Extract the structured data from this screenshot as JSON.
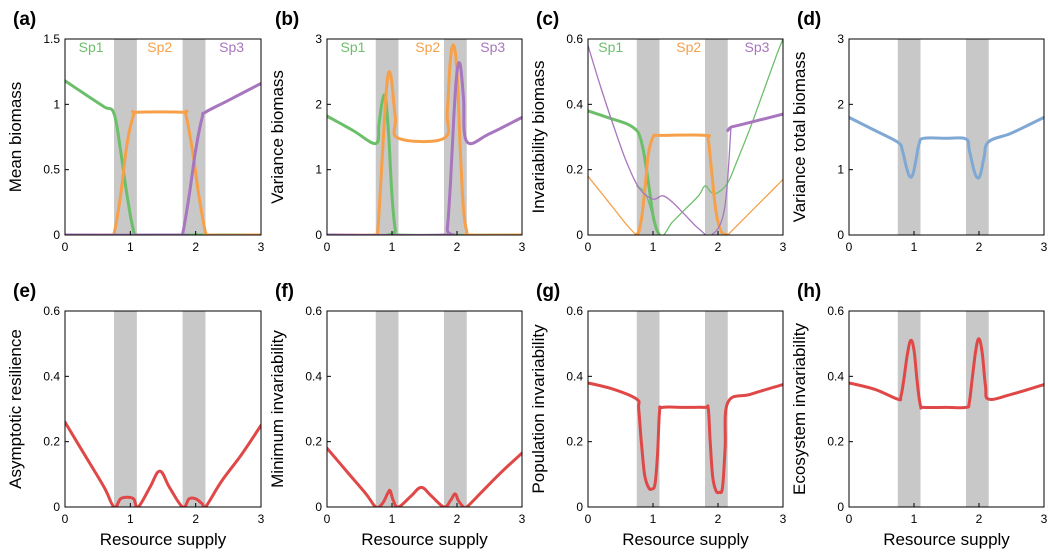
{
  "figure": {
    "xlabel_bottom_row": "Resource supply"
  },
  "colors": {
    "shade": "#c8c8c8",
    "sp1": "#6cbf6a",
    "sp2": "#f7a04a",
    "sp3": "#a776be",
    "total": "#7fa9d4",
    "metric": "#e04848"
  },
  "chart_data": [
    {
      "panel": "(a)",
      "type": "line",
      "ylabel": "Mean biomass",
      "xlim": [
        0,
        3
      ],
      "ylim": [
        0,
        1.5
      ],
      "xticks": [
        "0",
        "1",
        "2",
        "3"
      ],
      "yticks": [
        "0",
        "0.5",
        "1",
        "1.5"
      ],
      "shaded_regions": [
        [
          0.75,
          1.1
        ],
        [
          1.8,
          2.15
        ]
      ],
      "species_labels": [
        {
          "text": "Sp1",
          "x": 0.4,
          "color": "sp1"
        },
        {
          "text": "Sp2",
          "x": 1.45,
          "color": "sp2"
        },
        {
          "text": "Sp3",
          "x": 2.55,
          "color": "sp3"
        }
      ],
      "series": [
        {
          "name": "Sp1",
          "color": "sp1",
          "width": 3,
          "x": [
            0,
            0.3,
            0.6,
            0.75,
            0.85,
            0.95,
            1.05,
            1.1,
            1.5,
            2,
            3
          ],
          "y": [
            1.18,
            1.08,
            0.98,
            0.93,
            0.65,
            0.3,
            0.03,
            0,
            0,
            0,
            0
          ]
        },
        {
          "name": "Sp2",
          "color": "sp2",
          "width": 3,
          "x": [
            0,
            0.7,
            0.75,
            0.85,
            0.95,
            1.05,
            1.1,
            1.8,
            1.85,
            1.95,
            2.05,
            2.15,
            2.2,
            3
          ],
          "y": [
            0,
            0,
            0.01,
            0.3,
            0.7,
            0.92,
            0.94,
            0.94,
            0.92,
            0.65,
            0.3,
            0.02,
            0,
            0
          ]
        },
        {
          "name": "Sp3",
          "color": "sp3",
          "width": 3,
          "x": [
            0,
            1.75,
            1.8,
            1.9,
            2.0,
            2.1,
            2.15,
            2.5,
            3
          ],
          "y": [
            0,
            0,
            0.01,
            0.3,
            0.65,
            0.9,
            0.94,
            1.03,
            1.16
          ]
        }
      ]
    },
    {
      "panel": "(b)",
      "type": "line",
      "ylabel": "Variance biomass",
      "xlim": [
        0,
        3
      ],
      "ylim": [
        0,
        3
      ],
      "xticks": [
        "0",
        "1",
        "2",
        "3"
      ],
      "yticks": [
        "0",
        "1",
        "2",
        "3"
      ],
      "shaded_regions": [
        [
          0.75,
          1.1
        ],
        [
          1.8,
          2.15
        ]
      ],
      "species_labels": [
        {
          "text": "Sp1",
          "x": 0.4,
          "color": "sp1"
        },
        {
          "text": "Sp2",
          "x": 1.55,
          "color": "sp2"
        },
        {
          "text": "Sp3",
          "x": 2.55,
          "color": "sp3"
        }
      ],
      "series": [
        {
          "name": "Sp1",
          "color": "sp1",
          "width": 3,
          "x": [
            0,
            0.4,
            0.75,
            0.8,
            0.85,
            0.9,
            0.95,
            1.0,
            1.05,
            1.1,
            3
          ],
          "y": [
            1.82,
            1.6,
            1.4,
            1.7,
            2.05,
            2.1,
            1.5,
            0.6,
            0.08,
            0,
            0
          ]
        },
        {
          "name": "Sp2",
          "color": "sp2",
          "width": 3,
          "x": [
            0,
            0.73,
            0.78,
            0.85,
            0.92,
            0.98,
            1.05,
            1.1,
            1.8,
            1.85,
            1.9,
            1.95,
            2.0,
            2.05,
            2.1,
            2.15,
            2.2,
            3
          ],
          "y": [
            0,
            0,
            0.05,
            1.2,
            2.3,
            2.45,
            1.8,
            1.48,
            1.48,
            1.9,
            2.7,
            2.9,
            2.5,
            1.3,
            0.4,
            0.05,
            0,
            0
          ]
        },
        {
          "name": "Sp3",
          "color": "sp3",
          "width": 3,
          "x": [
            0,
            1.8,
            1.85,
            1.9,
            1.95,
            2.0,
            2.05,
            2.1,
            2.15,
            2.5,
            3
          ],
          "y": [
            0,
            0,
            0.1,
            0.8,
            1.8,
            2.5,
            2.6,
            2.1,
            1.43,
            1.55,
            1.8
          ]
        }
      ]
    },
    {
      "panel": "(c)",
      "type": "line",
      "ylabel": "Invariability biomass",
      "xlim": [
        0,
        3
      ],
      "ylim": [
        0,
        0.6
      ],
      "xticks": [
        "0",
        "1",
        "2",
        "3"
      ],
      "yticks": [
        "0",
        "0.2",
        "0.4",
        "0.6"
      ],
      "shaded_regions": [
        [
          0.75,
          1.1
        ],
        [
          1.8,
          2.15
        ]
      ],
      "species_labels": [
        {
          "text": "Sp1",
          "x": 0.35,
          "color": "sp1"
        },
        {
          "text": "Sp2",
          "x": 1.55,
          "color": "sp2"
        },
        {
          "text": "Sp3",
          "x": 2.6,
          "color": "sp3"
        }
      ],
      "series": [
        {
          "name": "Sp1 (thin)",
          "color": "sp1",
          "width": 1.3,
          "x": [
            0.75,
            0.9,
            1.1,
            1.3,
            1.5,
            1.7,
            1.8,
            1.9,
            2.0,
            2.15,
            2.3,
            2.5,
            2.7,
            2.9,
            3.0
          ],
          "y": [
            0.15,
            0.12,
            0.0,
            0.04,
            0.08,
            0.12,
            0.15,
            0.13,
            0.13,
            0.16,
            0.23,
            0.33,
            0.44,
            0.55,
            0.6
          ]
        },
        {
          "name": "Sp1",
          "color": "sp1",
          "width": 3,
          "x": [
            0,
            0.3,
            0.6,
            0.75,
            0.8,
            0.85,
            0.9,
            0.95,
            1.0,
            1.05,
            1.1
          ],
          "y": [
            0.38,
            0.36,
            0.34,
            0.32,
            0.3,
            0.26,
            0.2,
            0.13,
            0.06,
            0.02,
            0
          ]
        },
        {
          "name": "Sp2 (thin)",
          "color": "sp2",
          "width": 1.3,
          "x": [
            0,
            0.2,
            0.4,
            0.6,
            0.75,
            0.8
          ],
          "y": [
            0.18,
            0.13,
            0.08,
            0.03,
            0.0,
            0.01
          ]
        },
        {
          "name": "Sp2 (thin right)",
          "color": "sp2",
          "width": 1.3,
          "x": [
            2.15,
            2.3,
            2.5,
            2.7,
            2.9,
            3.0
          ],
          "y": [
            0.0,
            0.03,
            0.07,
            0.11,
            0.15,
            0.17
          ]
        },
        {
          "name": "Sp2",
          "color": "sp2",
          "width": 3,
          "x": [
            0.73,
            0.78,
            0.83,
            0.88,
            0.93,
            1.0,
            1.05,
            1.1,
            1.8,
            1.85,
            1.9,
            1.95,
            2.0,
            2.05,
            2.1,
            2.15
          ],
          "y": [
            0,
            0.01,
            0.06,
            0.15,
            0.25,
            0.3,
            0.305,
            0.305,
            0.305,
            0.29,
            0.2,
            0.1,
            0.04,
            0.01,
            0.002,
            0
          ]
        },
        {
          "name": "Sp3 (thin)",
          "color": "sp3",
          "width": 1.3,
          "x": [
            0,
            0.2,
            0.4,
            0.6,
            0.8,
            1.0,
            1.15,
            1.3,
            1.5,
            1.7,
            1.9,
            2.1,
            2.2
          ],
          "y": [
            0.58,
            0.45,
            0.33,
            0.22,
            0.14,
            0.11,
            0.12,
            0.1,
            0.06,
            0.02,
            0.0,
            0.08,
            0.33
          ]
        },
        {
          "name": "Sp3",
          "color": "sp3",
          "width": 3,
          "x": [
            2.15,
            2.2,
            2.3,
            2.5,
            2.8,
            3.0
          ],
          "y": [
            0.32,
            0.33,
            0.335,
            0.345,
            0.36,
            0.37
          ]
        }
      ]
    },
    {
      "panel": "(d)",
      "type": "line",
      "ylabel": "Variance total biomass",
      "xlim": [
        0,
        3
      ],
      "ylim": [
        0,
        3
      ],
      "xticks": [
        "0",
        "1",
        "2",
        "3"
      ],
      "yticks": [
        "0",
        "1",
        "2",
        "3"
      ],
      "shaded_regions": [
        [
          0.75,
          1.1
        ],
        [
          1.8,
          2.15
        ]
      ],
      "series": [
        {
          "name": "Total",
          "color": "total",
          "width": 3,
          "x": [
            0,
            0.4,
            0.75,
            0.82,
            0.88,
            0.93,
            0.98,
            1.03,
            1.08,
            1.15,
            1.5,
            1.8,
            1.85,
            1.92,
            1.97,
            2.02,
            2.08,
            2.15,
            2.5,
            3
          ],
          "y": [
            1.8,
            1.6,
            1.42,
            1.3,
            1.05,
            0.9,
            0.92,
            1.15,
            1.4,
            1.48,
            1.48,
            1.47,
            1.3,
            1.0,
            0.88,
            0.92,
            1.2,
            1.43,
            1.56,
            1.8
          ]
        }
      ]
    },
    {
      "panel": "(e)",
      "type": "line",
      "ylabel": "Asymptotic resilience",
      "xlabel": "Resource supply",
      "xlim": [
        0,
        3
      ],
      "ylim": [
        0,
        0.6
      ],
      "xticks": [
        "0",
        "1",
        "2",
        "3"
      ],
      "yticks": [
        "0",
        "0.2",
        "0.4",
        "0.6"
      ],
      "shaded_regions": [
        [
          0.75,
          1.1
        ],
        [
          1.8,
          2.15
        ]
      ],
      "series": [
        {
          "name": "Resilience",
          "color": "metric",
          "width": 3,
          "x": [
            0,
            0.3,
            0.6,
            0.75,
            0.85,
            0.95,
            1.05,
            1.12,
            1.3,
            1.45,
            1.6,
            1.8,
            1.9,
            2.0,
            2.1,
            2.15,
            2.4,
            2.7,
            3.0
          ],
          "y": [
            0.26,
            0.16,
            0.06,
            0.0,
            0.025,
            0.03,
            0.025,
            0.0,
            0.06,
            0.11,
            0.06,
            0.0,
            0.025,
            0.025,
            0.01,
            0.0,
            0.08,
            0.16,
            0.25
          ]
        }
      ]
    },
    {
      "panel": "(f)",
      "type": "line",
      "ylabel": "Minimum invariability",
      "xlabel": "Resource supply",
      "xlim": [
        0,
        3
      ],
      "ylim": [
        0,
        0.6
      ],
      "xticks": [
        "0",
        "1",
        "2",
        "3"
      ],
      "yticks": [
        "0",
        "0.2",
        "0.4",
        "0.6"
      ],
      "shaded_regions": [
        [
          0.75,
          1.1
        ],
        [
          1.8,
          2.15
        ]
      ],
      "series": [
        {
          "name": "Minimum invariability",
          "color": "metric",
          "width": 3,
          "x": [
            0,
            0.3,
            0.6,
            0.75,
            0.85,
            0.93,
            0.97,
            1.02,
            1.1,
            1.3,
            1.45,
            1.6,
            1.8,
            1.9,
            1.97,
            2.02,
            2.1,
            2.15,
            2.4,
            2.7,
            3.0
          ],
          "y": [
            0.18,
            0.11,
            0.04,
            0.0,
            0.01,
            0.04,
            0.05,
            0.02,
            0.0,
            0.035,
            0.06,
            0.035,
            0.0,
            0.02,
            0.04,
            0.02,
            0.0,
            0.0,
            0.05,
            0.11,
            0.165
          ]
        }
      ]
    },
    {
      "panel": "(g)",
      "type": "line",
      "ylabel": "Population invariability",
      "xlabel": "Resource supply",
      "xlim": [
        0,
        3
      ],
      "ylim": [
        0,
        0.6
      ],
      "xticks": [
        "0",
        "1",
        "2",
        "3"
      ],
      "yticks": [
        "0",
        "0.2",
        "0.4",
        "0.6"
      ],
      "shaded_regions": [
        [
          0.75,
          1.1
        ],
        [
          1.8,
          2.15
        ]
      ],
      "series": [
        {
          "name": "Population invariability",
          "color": "metric",
          "width": 3,
          "x": [
            0,
            0.4,
            0.75,
            0.78,
            0.82,
            0.87,
            0.93,
            0.98,
            1.03,
            1.07,
            1.1,
            1.15,
            1.5,
            1.8,
            1.85,
            1.88,
            1.92,
            1.97,
            2.02,
            2.07,
            2.11,
            2.15,
            2.5,
            3.0
          ],
          "y": [
            0.38,
            0.36,
            0.33,
            0.3,
            0.2,
            0.1,
            0.06,
            0.055,
            0.07,
            0.16,
            0.29,
            0.305,
            0.305,
            0.305,
            0.3,
            0.2,
            0.09,
            0.05,
            0.045,
            0.06,
            0.18,
            0.32,
            0.345,
            0.375
          ]
        }
      ]
    },
    {
      "panel": "(h)",
      "type": "line",
      "ylabel": "Ecosystem invariability",
      "xlabel": "Resource supply",
      "xlim": [
        0,
        3
      ],
      "ylim": [
        0,
        0.6
      ],
      "xticks": [
        "0",
        "1",
        "2",
        "3"
      ],
      "yticks": [
        "0",
        "0.2",
        "0.4",
        "0.6"
      ],
      "shaded_regions": [
        [
          0.75,
          1.1
        ],
        [
          1.8,
          2.15
        ]
      ],
      "series": [
        {
          "name": "Ecosystem invariability",
          "color": "metric",
          "width": 3,
          "x": [
            0,
            0.4,
            0.75,
            0.8,
            0.85,
            0.9,
            0.95,
            1.0,
            1.05,
            1.1,
            1.15,
            1.5,
            1.8,
            1.85,
            1.9,
            1.95,
            2.0,
            2.05,
            2.1,
            2.15,
            2.5,
            3.0
          ],
          "y": [
            0.38,
            0.36,
            0.33,
            0.34,
            0.4,
            0.47,
            0.51,
            0.48,
            0.38,
            0.31,
            0.305,
            0.305,
            0.305,
            0.32,
            0.4,
            0.48,
            0.515,
            0.47,
            0.37,
            0.33,
            0.345,
            0.375
          ]
        }
      ]
    }
  ]
}
